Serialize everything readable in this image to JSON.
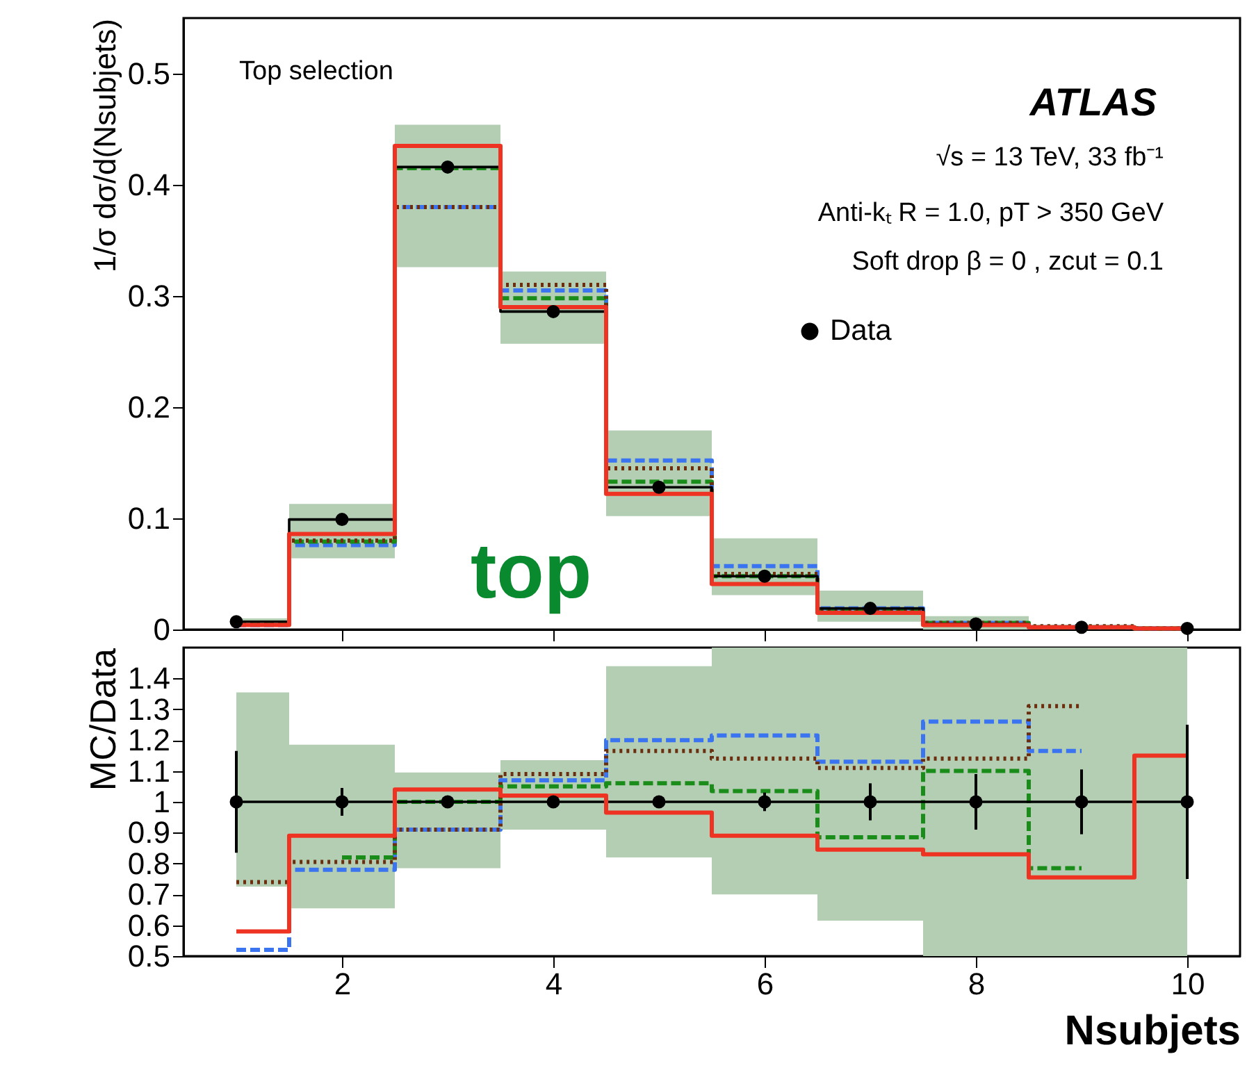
{
  "chart_data": [
    {
      "type": "step",
      "ylabel": "1/σ dσ/d(Nsubjets)",
      "x": [
        1,
        2,
        3,
        4,
        5,
        6,
        7,
        8,
        9,
        10
      ],
      "xlim": [
        0.5,
        10.5
      ],
      "xticks": [
        2,
        4,
        6,
        8,
        10
      ],
      "ylim": [
        0,
        0.55
      ],
      "yticks": [
        0,
        0.1,
        0.2,
        0.3,
        0.4,
        0.5
      ],
      "tick_labels": "y",
      "legend": "right",
      "grid": false,
      "annotations": [
        "Top selection",
        "ATLAS",
        "√s = 13 TeV, 33 fb⁻¹",
        "Anti-kₜ R = 1.0, pT > 350 GeV",
        "Soft drop β = 0 , zcut = 0.1",
        "top"
      ],
      "series": [
        {
          "name": "Data",
          "type": "step",
          "line_style": "solid",
          "marker": "circle",
          "color": "#000000",
          "values": [
            0.007,
            0.099,
            0.416,
            0.286,
            0.128,
            0.048,
            0.019,
            0.005,
            0.002,
            0.001
          ],
          "lower": [
            0.003,
            0.064,
            0.326,
            0.257,
            0.102,
            0.031,
            0.007,
            0.0,
            0.0,
            0.0
          ],
          "upper": [
            0.01,
            0.113,
            0.454,
            0.322,
            0.179,
            0.082,
            0.035,
            0.012,
            0.004,
            0.003
          ]
        },
        {
          "line_style": "solid",
          "color": "#ee3322",
          "values": [
            0.004,
            0.086,
            0.435,
            0.29,
            0.122,
            0.041,
            0.015,
            0.004,
            0.002,
            0.001
          ]
        },
        {
          "line_style": "dashed",
          "color": "#3b74f0",
          "values": [
            0.004,
            0.076,
            0.38,
            0.305,
            0.152,
            0.057,
            0.019,
            0.006,
            0.002,
            0.001
          ]
        },
        {
          "line_style": "dashed",
          "color": "#1a8c1a",
          "values": [
            0.006,
            0.079,
            0.415,
            0.298,
            0.133,
            0.048,
            0.017,
            0.006,
            0.002,
            0.001
          ]
        },
        {
          "line_style": "dotted",
          "color": "#6b2e0e",
          "values": [
            0.005,
            0.08,
            0.38,
            0.31,
            0.145,
            0.05,
            0.018,
            0.006,
            0.003,
            0.001
          ]
        }
      ]
    },
    {
      "type": "step",
      "xlabel": "Nsubjets",
      "ylabel": "MC/Data",
      "x": [
        1,
        2,
        3,
        4,
        5,
        6,
        7,
        8,
        9,
        10
      ],
      "xlim": [
        0.5,
        10.5
      ],
      "xticks": [
        2,
        4,
        6,
        8,
        10
      ],
      "ylim": [
        0.5,
        1.5
      ],
      "yticks": [
        0.5,
        0.6,
        0.7,
        0.8,
        0.9,
        1,
        1.1,
        1.2,
        1.3,
        1.4
      ],
      "grid": false,
      "series": [
        {
          "type": "step",
          "line_style": "solid",
          "marker": "circle",
          "color": "#000000",
          "values": [
            1,
            1,
            1,
            1,
            1,
            1,
            1,
            1,
            1,
            1
          ],
          "errors": [
            0.165,
            0.045,
            0.01,
            0.01,
            0.01,
            0.03,
            0.06,
            0.09,
            0.105,
            0.25
          ],
          "lower": [
            0.725,
            0.655,
            0.785,
            0.91,
            0.82,
            0.7,
            0.615,
            0.5,
            0.5,
            0.5
          ],
          "upper": [
            1.355,
            1.185,
            1.095,
            1.135,
            1.44,
            1.5,
            1.5,
            1.5,
            1.5,
            1.5
          ]
        },
        {
          "line_style": "solid",
          "color": "#ee3322",
          "values": [
            0.58,
            0.89,
            1.04,
            1.02,
            0.965,
            0.89,
            0.845,
            0.83,
            0.755,
            1.15
          ]
        },
        {
          "line_style": "dashed",
          "color": "#3b74f0",
          "values": [
            0.52,
            0.78,
            0.91,
            1.07,
            1.2,
            1.215,
            1.13,
            1.26,
            1.165,
            null
          ]
        },
        {
          "line_style": "dashed",
          "color": "#1a8c1a",
          "values": [
            null,
            0.82,
            1.0,
            1.05,
            1.06,
            1.035,
            0.885,
            1.1,
            0.785,
            null
          ]
        },
        {
          "line_style": "dotted",
          "color": "#6b2e0e",
          "values": [
            0.74,
            0.805,
            0.91,
            1.09,
            1.165,
            1.14,
            1.11,
            1.14,
            1.31,
            null
          ]
        }
      ]
    }
  ]
}
